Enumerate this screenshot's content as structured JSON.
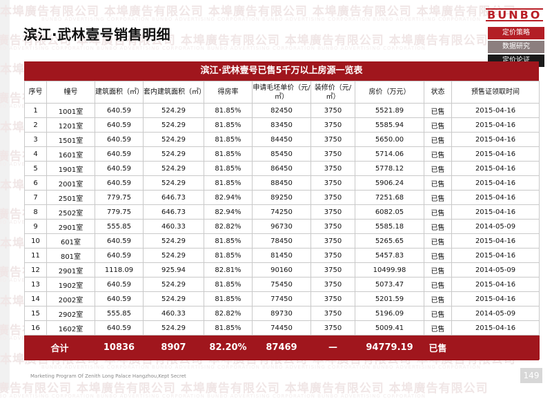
{
  "watermark": {
    "cn": "本埠廣告有限公司 本埠廣告有限公司 本埠廣告有限公司 本埠廣告有限公司 本埠廣告有限公司",
    "en": "BUNBO ADVERTISING CORPORATION BUNBO ADVERTISING CORPORATION BUNBO ADVERTISING CORPORATION BUNBO ADVERTISING CORPORATION"
  },
  "header": {
    "title": "滨江·武林壹号销售明细",
    "logo": "BUNBO"
  },
  "nav": [
    {
      "label": "定价策略"
    },
    {
      "label": "数据研究"
    },
    {
      "label": "定价论证"
    }
  ],
  "table": {
    "caption": "滨江·武林壹号已售5千万以上房源一览表",
    "columns": [
      "序号",
      "幢号",
      "建筑面积（㎡）",
      "套内建筑面积（㎡）",
      "得房率",
      "申请毛坯单价（元/㎡）",
      "装修价（元/㎡）",
      "房价（万元）",
      "状态",
      "预售证领取时间"
    ],
    "rows": [
      [
        "1",
        "1001室",
        "640.59",
        "524.29",
        "81.85%",
        "82450",
        "3750",
        "5521.89",
        "已售",
        "2015-04-16"
      ],
      [
        "2",
        "1201室",
        "640.59",
        "524.29",
        "81.85%",
        "83450",
        "3750",
        "5585.94",
        "已售",
        "2015-04-16"
      ],
      [
        "3",
        "1501室",
        "640.59",
        "524.29",
        "81.85%",
        "84450",
        "3750",
        "5650.00",
        "已售",
        "2015-04-16"
      ],
      [
        "4",
        "1601室",
        "640.59",
        "524.29",
        "81.85%",
        "85450",
        "3750",
        "5714.06",
        "已售",
        "2015-04-16"
      ],
      [
        "5",
        "1901室",
        "640.59",
        "524.29",
        "81.85%",
        "86450",
        "3750",
        "5778.12",
        "已售",
        "2015-04-16"
      ],
      [
        "6",
        "2001室",
        "640.59",
        "524.29",
        "81.85%",
        "88450",
        "3750",
        "5906.24",
        "已售",
        "2015-04-16"
      ],
      [
        "7",
        "2501室",
        "779.75",
        "646.73",
        "82.94%",
        "89250",
        "3750",
        "7251.68",
        "已售",
        "2015-04-16"
      ],
      [
        "8",
        "2502室",
        "779.75",
        "646.73",
        "82.94%",
        "74250",
        "3750",
        "6082.05",
        "已售",
        "2015-04-16"
      ],
      [
        "9",
        "2901室",
        "555.85",
        "460.33",
        "82.82%",
        "96730",
        "3750",
        "5585.18",
        "已售",
        "2014-05-09"
      ],
      [
        "10",
        "601室",
        "640.59",
        "524.29",
        "81.85%",
        "78450",
        "3750",
        "5265.65",
        "已售",
        "2015-04-16"
      ],
      [
        "11",
        "801室",
        "640.59",
        "524.29",
        "81.85%",
        "81450",
        "3750",
        "5457.83",
        "已售",
        "2015-04-16"
      ],
      [
        "12",
        "2901室",
        "1118.09",
        "925.94",
        "82.81%",
        "90160",
        "3750",
        "10499.98",
        "已售",
        "2014-05-09"
      ],
      [
        "13",
        "1902室",
        "640.59",
        "524.29",
        "81.85%",
        "75450",
        "3750",
        "5073.47",
        "已售",
        "2015-04-16"
      ],
      [
        "14",
        "2002室",
        "640.59",
        "524.29",
        "81.85%",
        "77450",
        "3750",
        "5201.59",
        "已售",
        "2015-04-16"
      ],
      [
        "15",
        "2902室",
        "555.85",
        "460.33",
        "82.82%",
        "89730",
        "3750",
        "5196.09",
        "已售",
        "2014-05-09"
      ],
      [
        "16",
        "1602室",
        "640.59",
        "524.29",
        "81.85%",
        "74450",
        "3750",
        "5009.41",
        "已售",
        "2015-04-16"
      ]
    ],
    "total": [
      "合计",
      "10836",
      "8907",
      "82.20%",
      "87469",
      "—",
      "94779.19",
      "已售",
      ""
    ]
  },
  "footer": {
    "text": "Marketing Program Of Zenith Long Palace Hangzhou,Kept Secret",
    "page": "149"
  }
}
